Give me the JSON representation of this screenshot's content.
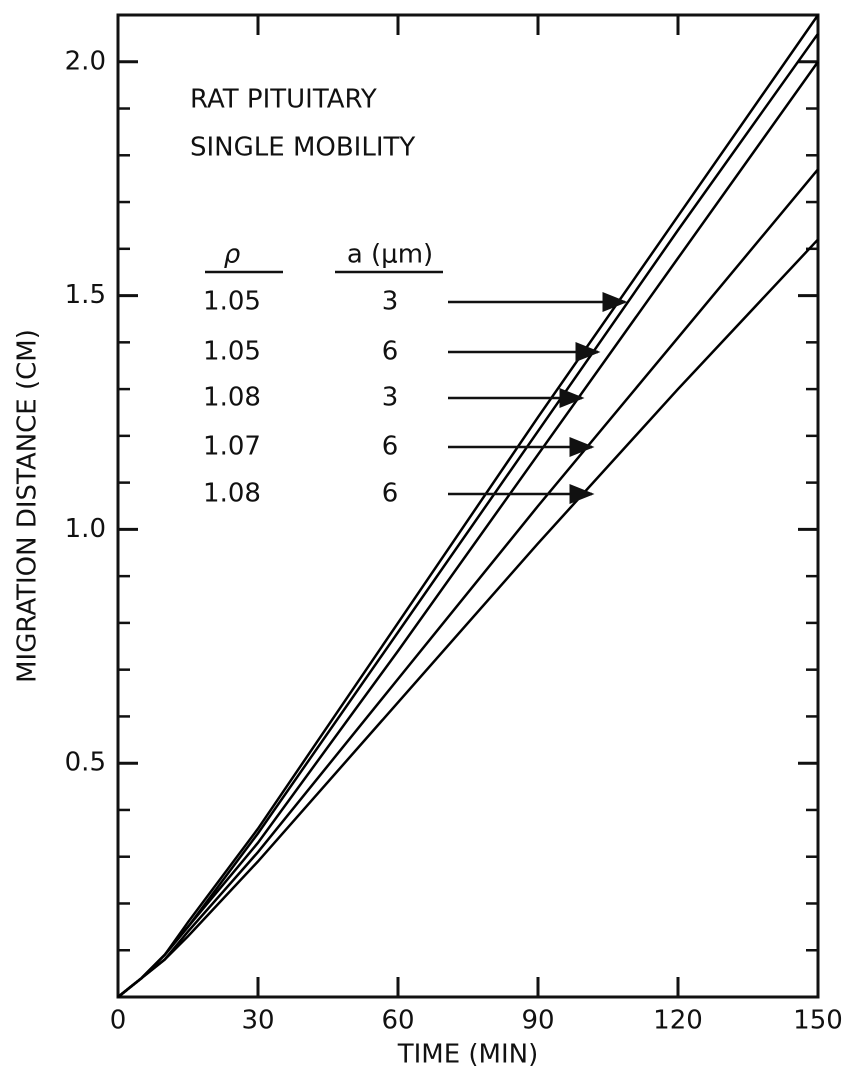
{
  "chart_data": {
    "type": "line",
    "title_lines": [
      "RAT PITUITARY",
      "SINGLE MOBILITY"
    ],
    "xlabel": "TIME (MIN)",
    "ylabel": "MIGRATION DISTANCE (CM)",
    "x": [
      0,
      5,
      10,
      15,
      30,
      60,
      90,
      120,
      150
    ],
    "xlim": [
      0,
      150
    ],
    "xticks": [
      0,
      30,
      60,
      90,
      120,
      150
    ],
    "ylim": [
      0,
      2.1
    ],
    "yticks": [
      {
        "value": 0.5,
        "label": "0.5"
      },
      {
        "value": 1,
        "label": "1.0"
      },
      {
        "value": 1.5,
        "label": "1.5"
      },
      {
        "value": 2,
        "label": "2.0"
      }
    ],
    "yminor_ticks": [
      0.1,
      0.2,
      0.3,
      0.4,
      0.6,
      0.7,
      0.8,
      0.9,
      1.1,
      1.2,
      1.3,
      1.4,
      1.6,
      1.7,
      1.8,
      1.9
    ],
    "color": "#000000",
    "legend_headers": [
      "ρ",
      "a (μm)"
    ],
    "series": [
      {
        "rho": 1.05,
        "a": 3,
        "values": [
          0,
          0.04,
          0.09,
          0.16,
          0.36,
          0.8,
          1.24,
          1.67,
          2.1
        ]
      },
      {
        "rho": 1.05,
        "a": 6,
        "values": [
          0,
          0.04,
          0.09,
          0.15,
          0.35,
          0.78,
          1.21,
          1.64,
          2.06
        ]
      },
      {
        "rho": 1.08,
        "a": 3,
        "values": [
          0,
          0.04,
          0.09,
          0.15,
          0.33,
          0.74,
          1.16,
          1.58,
          2.0
        ]
      },
      {
        "rho": 1.07,
        "a": 6,
        "values": [
          0,
          0.04,
          0.08,
          0.14,
          0.31,
          0.68,
          1.05,
          1.41,
          1.77
        ]
      },
      {
        "rho": 1.08,
        "a": 6,
        "values": [
          0,
          0.04,
          0.08,
          0.13,
          0.29,
          0.63,
          0.97,
          1.3,
          1.62
        ]
      }
    ]
  }
}
